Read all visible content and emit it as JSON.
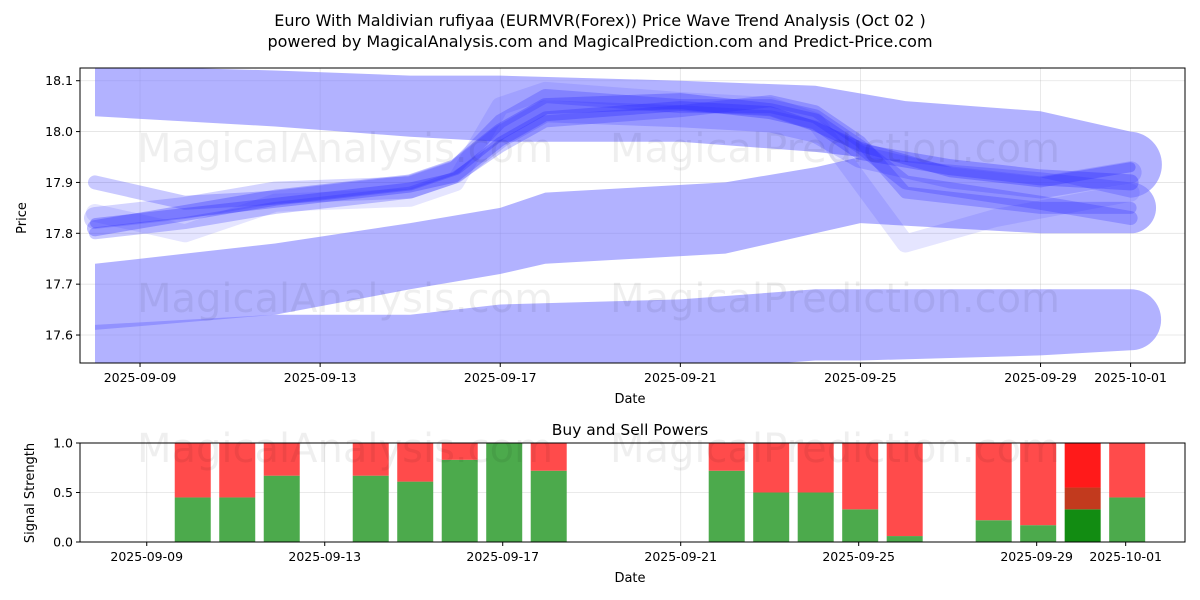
{
  "chart_data": [
    {
      "type": "area",
      "title_line1": "Euro With Maldivian rufiyaa (EURMVR(Forex)) Price Wave Trend Analysis (Oct 02 )",
      "title_line2": "powered by MagicalAnalysis.com and MagicalPrediction.com and Predict-Price.com",
      "xlabel": "Date",
      "ylabel": "Price",
      "x_range": [
        "2025-09-07 16:00",
        "2025-10-02 05:00"
      ],
      "ylim": [
        17.545,
        18.125
      ],
      "y_ticks": [
        17.6,
        17.7,
        17.8,
        17.9,
        18.0,
        18.1
      ],
      "y_tick_labels": [
        "17.6",
        "17.7",
        "17.8",
        "17.9",
        "18.0",
        "18.1"
      ],
      "x_ticks": [
        "2025-09-09",
        "2025-09-13",
        "2025-09-17",
        "2025-09-21",
        "2025-09-25",
        "2025-09-29",
        "2025-10-01"
      ],
      "watermarks": [
        "MagicalAnalysis.com",
        "MagicalPrediction.com",
        "MagicalAnalysis.com",
        "MagicalPrediction.com"
      ],
      "bands": [
        {
          "name": "upper-wave",
          "dates": [
            "2025-09-08",
            "2025-09-12",
            "2025-09-15",
            "2025-09-17",
            "2025-09-21",
            "2025-09-24",
            "2025-09-26",
            "2025-09-29",
            "2025-10-01"
          ],
          "upper": [
            18.13,
            18.12,
            18.11,
            18.11,
            18.1,
            18.09,
            18.06,
            18.04,
            18.0
          ],
          "lower": [
            18.03,
            18.01,
            17.99,
            17.98,
            17.98,
            17.96,
            17.94,
            17.91,
            17.87
          ]
        },
        {
          "name": "middle-wave",
          "dates": [
            "2025-09-08",
            "2025-09-12",
            "2025-09-15",
            "2025-09-17",
            "2025-09-18",
            "2025-09-22",
            "2025-09-24",
            "2025-09-25",
            "2025-09-29",
            "2025-10-01"
          ],
          "upper": [
            17.74,
            17.78,
            17.82,
            17.85,
            17.88,
            17.9,
            17.93,
            17.95,
            17.92,
            17.9
          ],
          "lower": [
            17.61,
            17.64,
            17.69,
            17.72,
            17.74,
            17.76,
            17.8,
            17.82,
            17.8,
            17.8
          ]
        },
        {
          "name": "lower-wave",
          "dates": [
            "2025-09-08",
            "2025-09-12",
            "2025-09-15",
            "2025-09-17",
            "2025-09-21",
            "2025-09-24",
            "2025-09-25",
            "2025-09-29",
            "2025-10-01"
          ],
          "upper": [
            17.62,
            17.64,
            17.64,
            17.66,
            17.67,
            17.69,
            17.69,
            17.69,
            17.69
          ],
          "lower": [
            17.54,
            17.52,
            17.52,
            17.52,
            17.53,
            17.55,
            17.55,
            17.56,
            17.57
          ]
        }
      ],
      "lines": [
        {
          "name": "trend-line-1",
          "dates": [
            "2025-09-08",
            "2025-09-10",
            "2025-09-12",
            "2025-09-15",
            "2025-09-16",
            "2025-09-17",
            "2025-09-18",
            "2025-09-21",
            "2025-09-23",
            "2025-09-24",
            "2025-09-25",
            "2025-09-27",
            "2025-09-29",
            "2025-10-01"
          ],
          "values": [
            17.81,
            17.84,
            17.87,
            17.9,
            17.93,
            18.0,
            18.05,
            18.06,
            18.04,
            18.02,
            17.96,
            17.93,
            17.91,
            17.9
          ],
          "width": 16,
          "opacity": 0.3
        },
        {
          "name": "trend-line-2",
          "dates": [
            "2025-09-08",
            "2025-09-10",
            "2025-09-12",
            "2025-09-15",
            "2025-09-16",
            "2025-09-17",
            "2025-09-18",
            "2025-09-21",
            "2025-09-23",
            "2025-09-24",
            "2025-09-25",
            "2025-09-27",
            "2025-09-29",
            "2025-10-01"
          ],
          "values": [
            17.83,
            17.85,
            17.88,
            17.89,
            17.92,
            17.99,
            18.04,
            18.03,
            18.02,
            18.0,
            17.95,
            17.91,
            17.89,
            17.92
          ],
          "width": 22,
          "opacity": 0.2
        },
        {
          "name": "trend-line-3",
          "dates": [
            "2025-09-08",
            "2025-09-10",
            "2025-09-12",
            "2025-09-15",
            "2025-09-16",
            "2025-09-17",
            "2025-09-18",
            "2025-09-21",
            "2025-09-23",
            "2025-09-24",
            "2025-09-25",
            "2025-09-26",
            "2025-09-29",
            "2025-10-01"
          ],
          "values": [
            17.9,
            17.86,
            17.87,
            17.9,
            17.93,
            18.02,
            18.07,
            18.05,
            18.05,
            18.03,
            17.97,
            17.9,
            17.86,
            17.83
          ],
          "width": 14,
          "opacity": 0.25
        },
        {
          "name": "trend-line-4",
          "dates": [
            "2025-09-08",
            "2025-09-10",
            "2025-09-12",
            "2025-09-15",
            "2025-09-16",
            "2025-09-17",
            "2025-09-18",
            "2025-09-21",
            "2025-09-23",
            "2025-09-24",
            "2025-09-25",
            "2025-09-26",
            "2025-09-29",
            "2025-10-01"
          ],
          "values": [
            17.8,
            17.82,
            17.85,
            17.88,
            17.91,
            17.97,
            18.02,
            18.04,
            18.06,
            18.04,
            17.98,
            17.88,
            17.85,
            17.85
          ],
          "width": 12,
          "opacity": 0.25
        },
        {
          "name": "trend-line-5",
          "dates": [
            "2025-09-08",
            "2025-09-10",
            "2025-09-12",
            "2025-09-15",
            "2025-09-16",
            "2025-09-17",
            "2025-09-18",
            "2025-09-21",
            "2025-09-23",
            "2025-09-24",
            "2025-09-25",
            "2025-09-26",
            "2025-09-28",
            "2025-10-01"
          ],
          "values": [
            17.84,
            17.8,
            17.86,
            17.87,
            17.9,
            18.05,
            18.08,
            18.06,
            18.05,
            18.02,
            17.9,
            17.78,
            17.83,
            17.88
          ],
          "width": 18,
          "opacity": 0.12
        },
        {
          "name": "trend-line-6",
          "dates": [
            "2025-09-08",
            "2025-09-10",
            "2025-09-12",
            "2025-09-15",
            "2025-09-16",
            "2025-09-17",
            "2025-09-18",
            "2025-09-21",
            "2025-09-23",
            "2025-09-24",
            "2025-09-25",
            "2025-09-27",
            "2025-09-29",
            "2025-10-01"
          ],
          "values": [
            17.82,
            17.84,
            17.86,
            17.89,
            17.91,
            17.98,
            18.03,
            18.05,
            18.04,
            18.01,
            17.97,
            17.92,
            17.9,
            17.93
          ],
          "width": 10,
          "opacity": 0.3
        }
      ]
    },
    {
      "type": "bar",
      "title": "Buy and Sell Powers",
      "xlabel": "Date",
      "ylabel": "Signal Strength",
      "ylim": [
        0,
        1.0
      ],
      "y_ticks": [
        0.0,
        0.5,
        1.0
      ],
      "y_tick_labels": [
        "0.0",
        "0.5",
        "1.0"
      ],
      "x_ticks": [
        "2025-09-09",
        "2025-09-13",
        "2025-09-17",
        "2025-09-21",
        "2025-09-25",
        "2025-09-29",
        "2025-10-01"
      ],
      "dates": [
        "2025-09-09",
        "2025-09-10",
        "2025-09-11",
        "2025-09-13",
        "2025-09-14",
        "2025-09-15",
        "2025-09-16",
        "2025-09-17",
        "2025-09-21",
        "2025-09-22",
        "2025-09-23",
        "2025-09-24",
        "2025-09-25",
        "2025-09-27",
        "2025-09-28",
        "2025-09-29",
        "2025-09-30"
      ],
      "buy": [
        0.45,
        0.45,
        0.67,
        0.67,
        0.61,
        0.83,
        1.0,
        0.72,
        0.72,
        0.5,
        0.5,
        0.33,
        0.06,
        0.22,
        0.17,
        0.33,
        0.45
      ],
      "sell": [
        0.55,
        0.55,
        0.33,
        0.33,
        0.39,
        0.17,
        0.0,
        0.28,
        0.28,
        0.5,
        0.5,
        0.67,
        0.94,
        0.78,
        0.83,
        0.67,
        0.55
      ],
      "highlight_date": "2025-09-29",
      "highlight_split": 0.55,
      "colors": {
        "buy": "#4caa4c",
        "sell": "#ff4b4b",
        "buy_strong": "#128c12",
        "sell_strong": "#ff1a1a",
        "sell_mid": "#c23a1e"
      }
    }
  ]
}
